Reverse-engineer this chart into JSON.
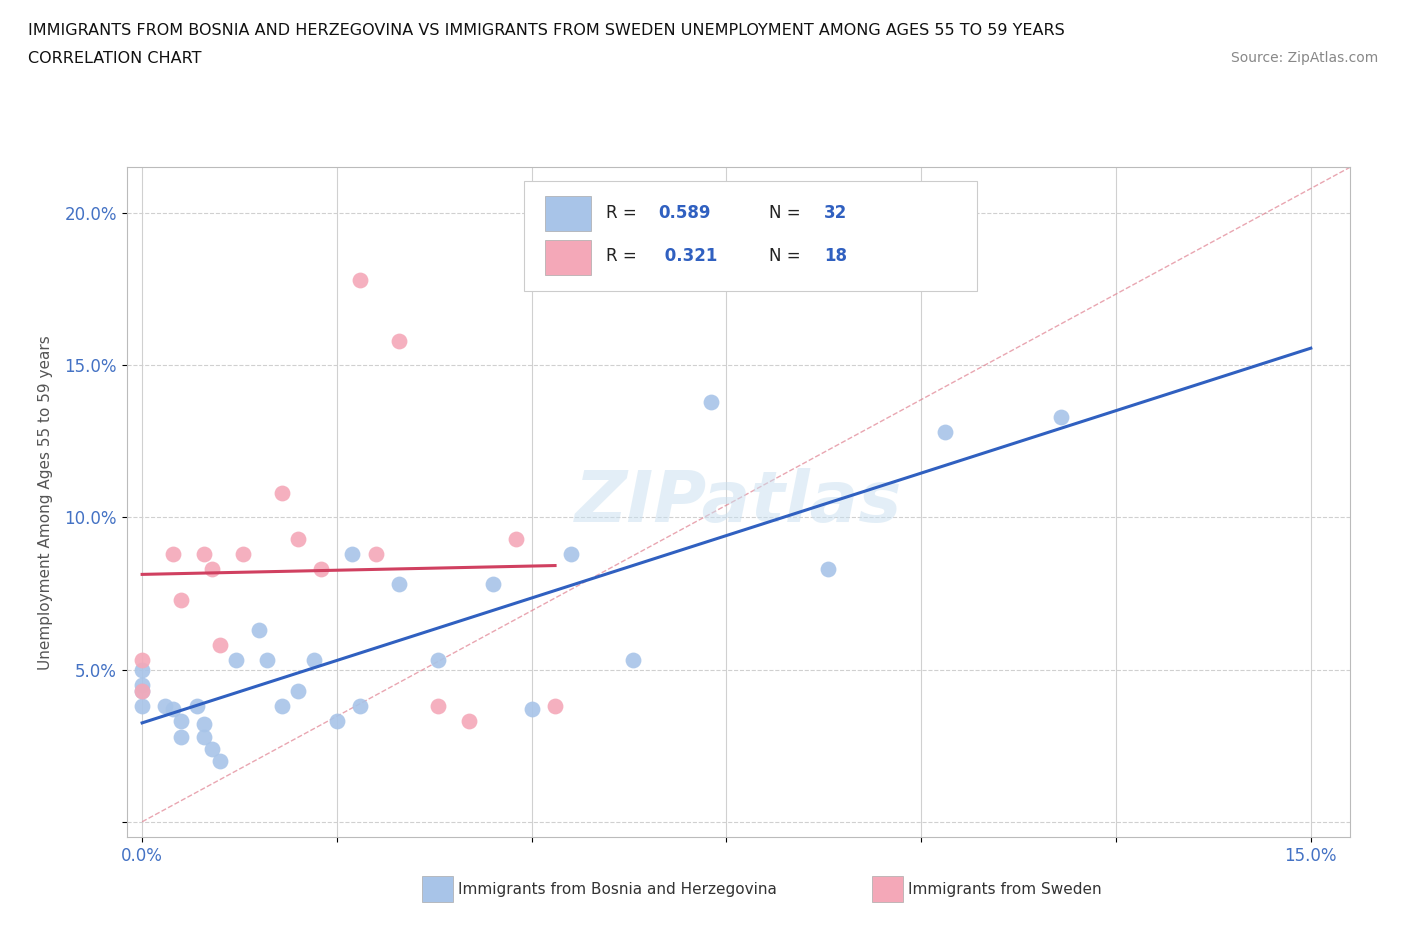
{
  "title_line1": "IMMIGRANTS FROM BOSNIA AND HERZEGOVINA VS IMMIGRANTS FROM SWEDEN UNEMPLOYMENT AMONG AGES 55 TO 59 YEARS",
  "title_line2": "CORRELATION CHART",
  "source_text": "Source: ZipAtlas.com",
  "ylabel": "Unemployment Among Ages 55 to 59 years",
  "xlim": [
    -0.002,
    0.155
  ],
  "ylim": [
    -0.005,
    0.215
  ],
  "x_ticks": [
    0.0,
    0.025,
    0.05,
    0.075,
    0.1,
    0.125,
    0.15
  ],
  "x_tick_labels": [
    "0.0%",
    "",
    "",
    "",
    "",
    "",
    "15.0%"
  ],
  "y_ticks": [
    0.0,
    0.05,
    0.1,
    0.15,
    0.2
  ],
  "y_tick_labels": [
    "",
    "5.0%",
    "10.0%",
    "15.0%",
    "20.0%"
  ],
  "bosnia_color": "#a8c4e8",
  "sweden_color": "#f4a8b8",
  "bosnia_line_color": "#3060c0",
  "sweden_line_color": "#d04060",
  "diag_line_color": "#e08090",
  "R_bosnia": 0.589,
  "N_bosnia": 32,
  "R_sweden": 0.321,
  "N_sweden": 18,
  "bosnia_x": [
    0.0,
    0.0,
    0.0,
    0.0,
    0.003,
    0.004,
    0.005,
    0.005,
    0.007,
    0.008,
    0.008,
    0.009,
    0.01,
    0.012,
    0.015,
    0.016,
    0.018,
    0.02,
    0.022,
    0.025,
    0.027,
    0.028,
    0.033,
    0.038,
    0.045,
    0.05,
    0.055,
    0.063,
    0.073,
    0.088,
    0.103,
    0.118
  ],
  "bosnia_y": [
    0.05,
    0.045,
    0.043,
    0.038,
    0.038,
    0.037,
    0.033,
    0.028,
    0.038,
    0.032,
    0.028,
    0.024,
    0.02,
    0.053,
    0.063,
    0.053,
    0.038,
    0.043,
    0.053,
    0.033,
    0.088,
    0.038,
    0.078,
    0.053,
    0.078,
    0.037,
    0.088,
    0.053,
    0.138,
    0.083,
    0.128,
    0.133
  ],
  "sweden_x": [
    0.0,
    0.0,
    0.004,
    0.005,
    0.008,
    0.009,
    0.01,
    0.013,
    0.018,
    0.02,
    0.023,
    0.028,
    0.03,
    0.033,
    0.038,
    0.042,
    0.048,
    0.053
  ],
  "sweden_y": [
    0.053,
    0.043,
    0.088,
    0.073,
    0.088,
    0.083,
    0.058,
    0.088,
    0.108,
    0.093,
    0.083,
    0.178,
    0.088,
    0.158,
    0.038,
    0.033,
    0.093,
    0.038
  ],
  "background_color": "#ffffff",
  "grid_color": "#d0d0d0",
  "watermark_color": "#c8dff0",
  "watermark_text": "ZIPatlas"
}
